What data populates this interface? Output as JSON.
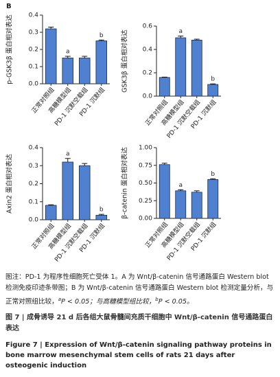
{
  "panel_label": "B",
  "chart_data": [
    {
      "type": "bar",
      "ylabel": "p-GSK3β 蛋白相对表达",
      "categories": [
        "正常对照组",
        "高糖模型组",
        "PD-1 沉默空载组",
        "PD-1 沉默组"
      ],
      "values": [
        0.32,
        0.15,
        0.15,
        0.25
      ],
      "errors": [
        0.01,
        0.01,
        0.01,
        0.005
      ],
      "annotations": [
        null,
        "a",
        null,
        "b"
      ],
      "color": "#4f81d0",
      "ylim": [
        0,
        0.4
      ],
      "yticks": [
        {
          "value": 0,
          "label": "0.0"
        },
        0.1,
        0.2,
        0.3,
        0.4
      ]
    },
    {
      "type": "bar",
      "ylabel": "GSK3β 蛋白相对表达",
      "categories": [
        "正常对照组",
        "高糖模型组",
        "PD-1 沉默空载组",
        "PD-1 沉默组"
      ],
      "values": [
        0.16,
        0.5,
        0.48,
        0.1
      ],
      "errors": [
        0.003,
        0.015,
        0.008,
        0.005
      ],
      "annotations": [
        null,
        "a",
        null,
        "b"
      ],
      "color": "#4f81d0",
      "ylim": [
        0,
        0.6
      ],
      "yticks": [
        {
          "value": 0,
          "label": "0.0"
        },
        0.2,
        0.4,
        0.6
      ]
    },
    {
      "type": "bar",
      "ylabel": "Axin2 蛋白相对表达",
      "categories": [
        "正常对照组",
        "高糖模型组",
        "PD-1 沉默空载组",
        "PD-1 沉默组"
      ],
      "values": [
        0.08,
        0.32,
        0.3,
        0.025
      ],
      "errors": [
        0.003,
        0.02,
        0.012,
        0.005
      ],
      "annotations": [
        null,
        "a",
        null,
        "b"
      ],
      "color": "#4f81d0",
      "ylim": [
        0,
        0.4
      ],
      "yticks": [
        {
          "value": 0,
          "label": "0.0"
        },
        0.1,
        0.2,
        0.3,
        0.4
      ]
    },
    {
      "type": "bar",
      "ylabel": "β-catenin 蛋白相对表达",
      "categories": [
        "正常对照组",
        "高糖模型组",
        "PD-1 沉默空载组",
        "PD-1 沉默组"
      ],
      "values": [
        0.76,
        0.39,
        0.37,
        0.55
      ],
      "errors": [
        0.02,
        0.015,
        0.02,
        0.01
      ],
      "annotations": [
        null,
        "a",
        null,
        "b"
      ],
      "color": "#4f81d0",
      "ylim": [
        0,
        1
      ],
      "yticks": [
        {
          "value": 0,
          "label": "0.00"
        },
        0.25,
        {
          "value": 0.5,
          "label": "0.50"
        },
        0.75,
        {
          "value": 1,
          "label": "1.00"
        }
      ]
    }
  ],
  "note": [
    "图注：PD-1 为程序性细胞死亡受体 1。A 为 Wnt/β-catenin 信号通路蛋白 Western blot 检测免疫印迹条带图；B 为 Wnt/β-catenin 信号通路蛋白 Western blot 检测定量分析，与正常对照组比较，",
    "a",
    "P < 0.05；与高糖模型组比较，",
    "b",
    "P < 0.05。"
  ],
  "caption_cn": "图 7 | 成骨诱导 21 d 后各组大鼠骨髓间充质干细胞中 Wnt/β-catenin 信号通路蛋白表达",
  "caption_en": "Figure 7 | Expression of Wnt/β-catenin signaling pathway proteins in bone marrow mesenchymal stem cells of rats 21 days after osteogenic induction"
}
